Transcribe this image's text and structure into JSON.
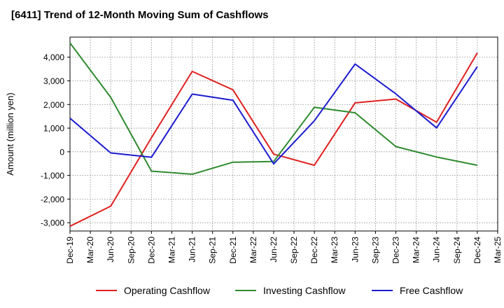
{
  "chart_data": {
    "type": "line",
    "title": "[6411]  Trend of 12-Month Moving Sum of Cashflows",
    "ylabel": "Amount (million yen)",
    "xlabel": "",
    "ylim": [
      -3350,
      4850
    ],
    "y_ticks": [
      4000,
      3000,
      2000,
      1000,
      0,
      -1000,
      -2000,
      -3000
    ],
    "y_tick_labels": [
      "4,000",
      "3,000",
      "2,000",
      "1,000",
      "0",
      "-1,000",
      "-2,000",
      "-3,000"
    ],
    "x_tick_labels": [
      "Dec-19",
      "Mar-20",
      "Jun-20",
      "Sep-20",
      "Dec-20",
      "Mar-21",
      "Jun-21",
      "Sep-21",
      "Dec-21",
      "Mar-22",
      "Jun-22",
      "Sep-22",
      "Dec-22",
      "Mar-23",
      "Jun-23",
      "Sep-23",
      "Dec-23",
      "Mar-24",
      "Jun-24",
      "Sep-24",
      "Dec-24",
      "Mar-25"
    ],
    "grid": true,
    "legend_position": "bottom",
    "series": [
      {
        "name": "Operating Cashflow",
        "color": "#e02020",
        "x": [
          "Dec-19",
          "Jun-20",
          "Dec-20",
          "Jun-21",
          "Dec-21",
          "Jun-22",
          "Dec-22",
          "Jun-23",
          "Dec-23",
          "Jun-24",
          "Dec-24"
        ],
        "values": [
          -3150,
          -2300,
          600,
          3400,
          2620,
          -100,
          -570,
          2070,
          2230,
          1250,
          4180
        ]
      },
      {
        "name": "Investing Cashflow",
        "color": "#2e8b2e",
        "x": [
          "Dec-19",
          "Jun-20",
          "Dec-20",
          "Jun-21",
          "Dec-21",
          "Jun-22",
          "Dec-22",
          "Jun-23",
          "Dec-23",
          "Jun-24",
          "Dec-24"
        ],
        "values": [
          4600,
          2300,
          -820,
          -950,
          -440,
          -410,
          1880,
          1650,
          220,
          -220,
          -570
        ]
      },
      {
        "name": "Free Cashflow",
        "color": "#1c1cd0",
        "x": [
          "Dec-19",
          "Jun-20",
          "Dec-20",
          "Jun-21",
          "Dec-21",
          "Jun-22",
          "Dec-22",
          "Jun-23",
          "Dec-23",
          "Jun-24",
          "Dec-24"
        ],
        "values": [
          1420,
          -50,
          -230,
          2440,
          2180,
          -510,
          1310,
          3710,
          2450,
          1010,
          3600
        ]
      }
    ]
  }
}
